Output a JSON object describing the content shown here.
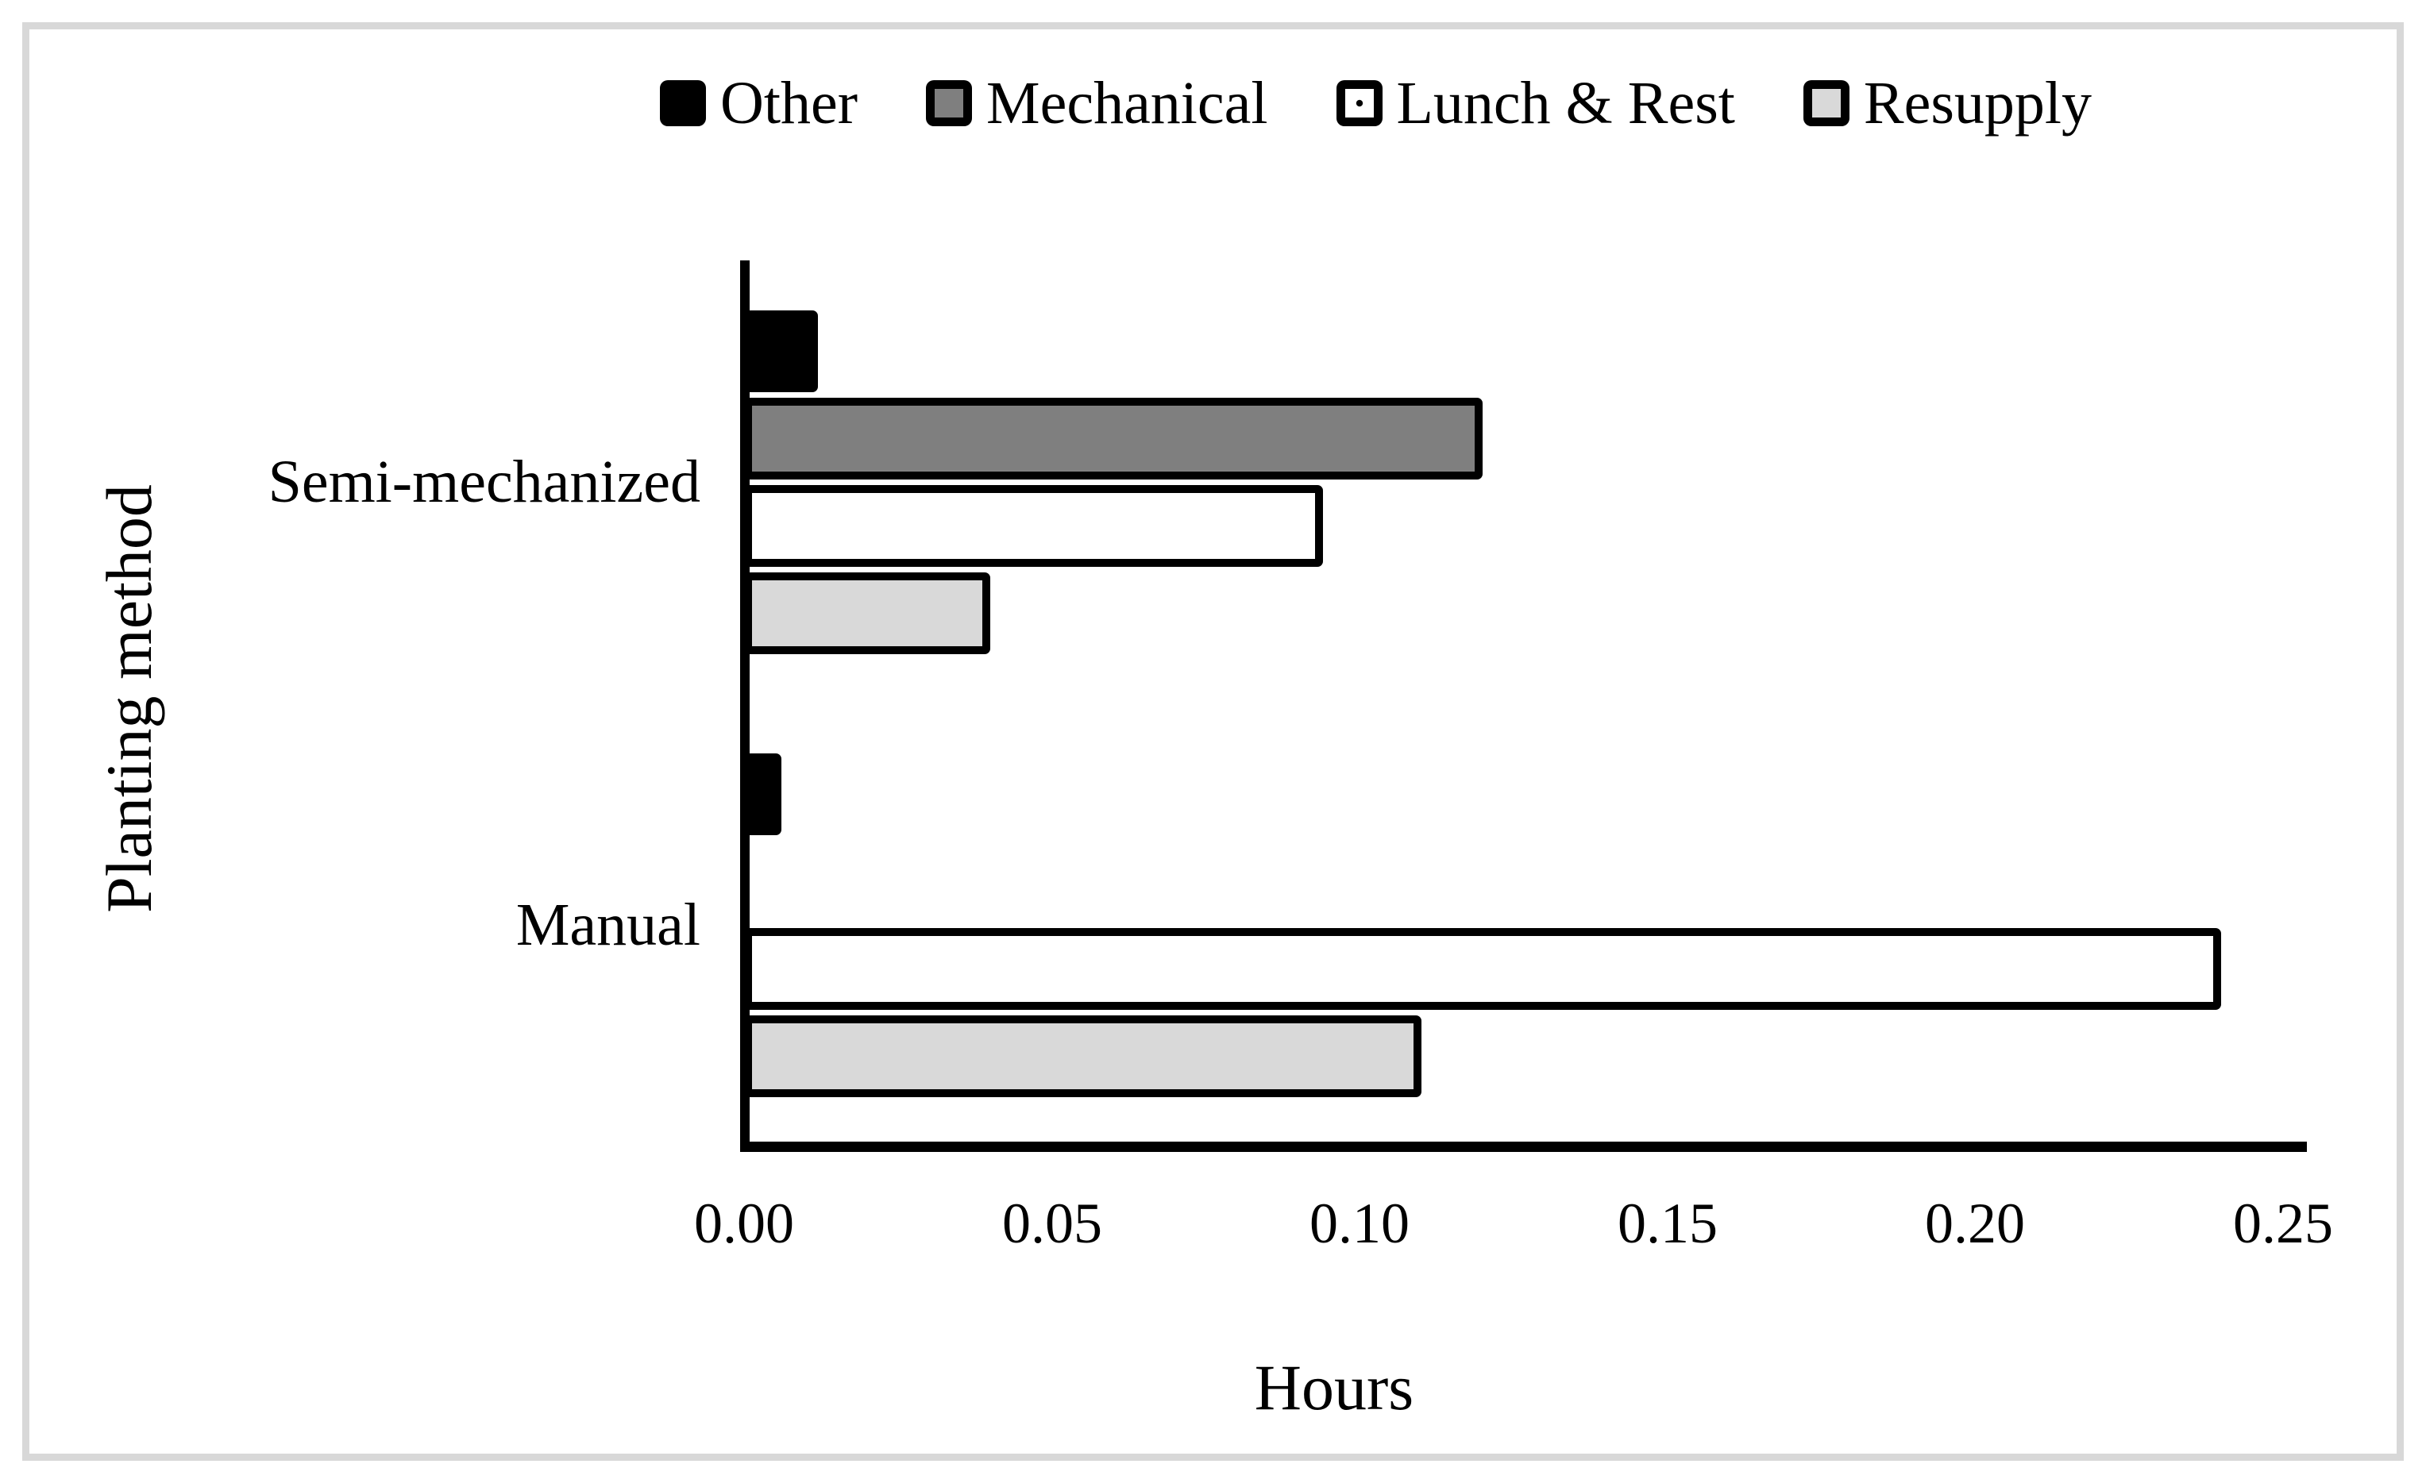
{
  "chart_data": {
    "type": "bar",
    "orientation": "horizontal",
    "title": "",
    "xlabel": "Hours",
    "ylabel": "Planting method",
    "xlim": [
      0,
      0.25
    ],
    "xticks": [
      "0.00",
      "0.05",
      "0.10",
      "0.15",
      "0.20",
      "0.25"
    ],
    "grid": false,
    "legend_position": "top",
    "categories": [
      "Semi-mechanized",
      "Manual"
    ],
    "series": [
      {
        "name": "Other",
        "color": "#000000",
        "pattern": "solid-black",
        "values": [
          0.012,
          0.006
        ]
      },
      {
        "name": "Mechanical",
        "color": "#7f7f7f",
        "pattern": "solid-gray",
        "values": [
          0.12,
          0
        ]
      },
      {
        "name": "Lunch & Rest",
        "color": "#ffffff",
        "pattern": "dots",
        "values": [
          0.094,
          0.24
        ]
      },
      {
        "name": "Resupply",
        "color": "#d9d9d9",
        "pattern": "solid-light",
        "values": [
          0.04,
          0.11
        ]
      }
    ]
  }
}
